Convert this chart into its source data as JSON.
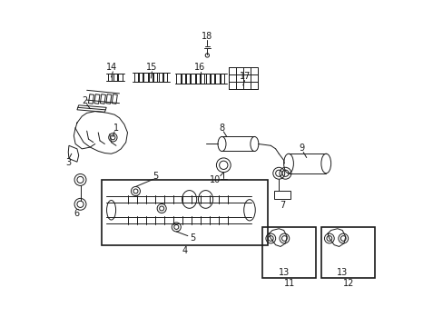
{
  "background_color": "#ffffff",
  "line_color": "#1a1a1a",
  "text_color": "#1a1a1a",
  "figsize": [
    4.89,
    3.6
  ],
  "dpi": 100,
  "xlim": [
    0,
    10
  ],
  "ylim": [
    0,
    10
  ]
}
